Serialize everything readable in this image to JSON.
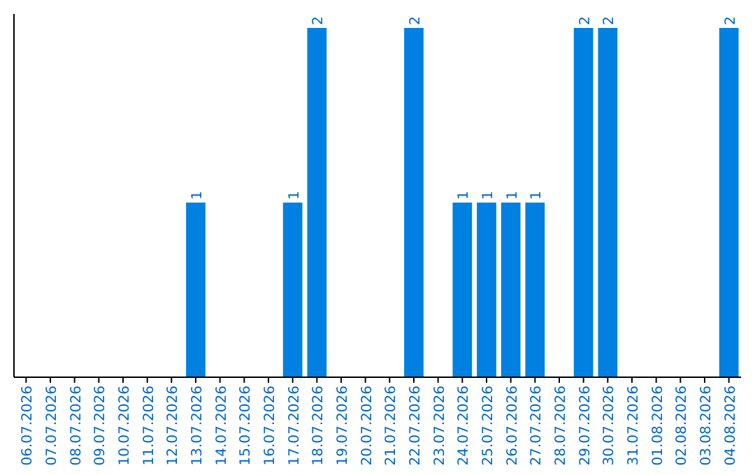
{
  "chart_data": {
    "type": "bar",
    "categories": [
      "06.07.2026",
      "07.07.2026",
      "08.07.2026",
      "09.07.2026",
      "10.07.2026",
      "11.07.2026",
      "12.07.2026",
      "13.07.2026",
      "14.07.2026",
      "15.07.2026",
      "16.07.2026",
      "17.07.2026",
      "18.07.2026",
      "19.07.2026",
      "20.07.2026",
      "21.07.2026",
      "22.07.2026",
      "23.07.2026",
      "24.07.2026",
      "25.07.2026",
      "26.07.2026",
      "27.07.2026",
      "28.07.2026",
      "29.07.2026",
      "30.07.2026",
      "31.07.2026",
      "01.08.2026",
      "02.08.2026",
      "03.08.2026",
      "04.08.2026"
    ],
    "values": [
      0,
      0,
      0,
      0,
      0,
      0,
      0,
      1,
      0,
      0,
      0,
      1,
      2,
      0,
      0,
      0,
      2,
      0,
      1,
      1,
      1,
      1,
      0,
      2,
      2,
      0,
      0,
      0,
      0,
      2
    ],
    "value_labels": [
      null,
      null,
      null,
      null,
      null,
      null,
      null,
      "1",
      null,
      null,
      null,
      "1",
      "2",
      null,
      null,
      null,
      "2",
      null,
      "1",
      "1",
      "1",
      "1",
      null,
      "2",
      "2",
      null,
      null,
      null,
      null,
      "2"
    ],
    "color": "#0080e0"
  }
}
